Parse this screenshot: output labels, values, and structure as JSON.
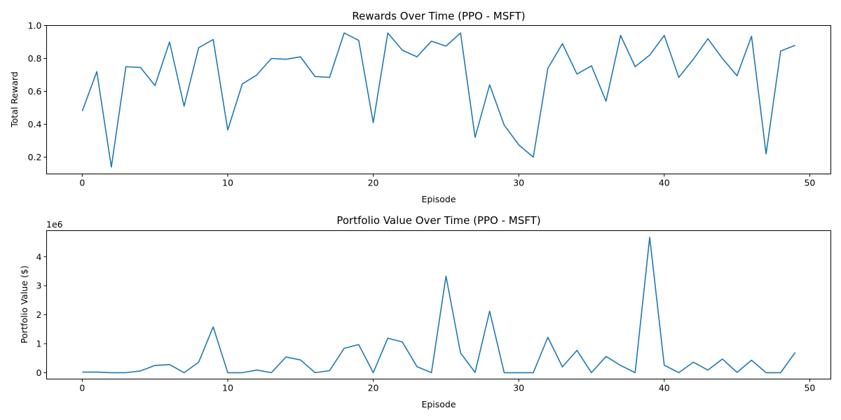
{
  "chart_data": [
    {
      "type": "line",
      "title": "Rewards Over Time (PPO - MSFT)",
      "xlabel": "Episode",
      "ylabel": "Total Reward",
      "xlim": [
        -2.45,
        51.45
      ],
      "ylim": [
        0.098,
        1.0
      ],
      "xticks": [
        0,
        10,
        20,
        30,
        40,
        50
      ],
      "xtick_labels": [
        "0",
        "10",
        "20",
        "30",
        "40",
        "50"
      ],
      "yticks": [
        0.2,
        0.4,
        0.6,
        0.8,
        1.0
      ],
      "ytick_labels": [
        "0.2",
        "0.4",
        "0.6",
        "0.8",
        "1.0"
      ],
      "grid": false,
      "series": [
        {
          "color": "#1f77b4",
          "x": [
            0,
            1,
            2,
            3,
            4,
            5,
            6,
            7,
            8,
            9,
            10,
            11,
            12,
            13,
            14,
            15,
            16,
            17,
            18,
            19,
            20,
            21,
            22,
            23,
            24,
            25,
            26,
            27,
            28,
            29,
            30,
            31,
            32,
            33,
            34,
            35,
            36,
            37,
            38,
            39,
            40,
            41,
            42,
            43,
            44,
            45,
            46,
            47,
            48,
            49
          ],
          "values": [
            0.48,
            0.72,
            0.14,
            0.75,
            0.745,
            0.635,
            0.9,
            0.51,
            0.865,
            0.915,
            0.365,
            0.645,
            0.7,
            0.8,
            0.795,
            0.81,
            0.69,
            0.685,
            0.955,
            0.91,
            0.41,
            0.955,
            0.85,
            0.81,
            0.905,
            0.875,
            0.955,
            0.32,
            0.64,
            0.395,
            0.275,
            0.2,
            0.74,
            0.89,
            0.705,
            0.755,
            0.54,
            0.94,
            0.75,
            0.82,
            0.94,
            0.685,
            0.795,
            0.92,
            0.8,
            0.695,
            0.935,
            0.22,
            0.845,
            0.88
          ]
        }
      ]
    },
    {
      "type": "line",
      "title": "Portfolio Value Over Time (PPO - MSFT)",
      "xlabel": "Episode",
      "ylabel": "Portfolio Value ($)",
      "y_offset_label": "1e6",
      "xlim": [
        -2.45,
        51.45
      ],
      "ylim": [
        -0.22,
        4.9
      ],
      "xticks": [
        0,
        10,
        20,
        30,
        40,
        50
      ],
      "xtick_labels": [
        "0",
        "10",
        "20",
        "30",
        "40",
        "50"
      ],
      "yticks": [
        0,
        1,
        2,
        3,
        4
      ],
      "ytick_labels": [
        "0",
        "1",
        "2",
        "3",
        "4"
      ],
      "grid": false,
      "series": [
        {
          "color": "#1f77b4",
          "x": [
            0,
            1,
            2,
            3,
            4,
            5,
            6,
            7,
            8,
            9,
            10,
            11,
            12,
            13,
            14,
            15,
            16,
            17,
            18,
            19,
            20,
            21,
            22,
            23,
            24,
            25,
            26,
            27,
            28,
            29,
            30,
            31,
            32,
            33,
            34,
            35,
            36,
            37,
            38,
            39,
            40,
            41,
            42,
            43,
            44,
            45,
            46,
            47,
            48,
            49
          ],
          "values": [
            0.02,
            0.02,
            0.0,
            0.0,
            0.06,
            0.25,
            0.28,
            0.0,
            0.36,
            1.58,
            0.0,
            0.0,
            0.09,
            0.0,
            0.54,
            0.44,
            0.0,
            0.07,
            0.84,
            0.97,
            0.0,
            1.19,
            1.06,
            0.21,
            0.0,
            3.33,
            0.68,
            0.01,
            2.12,
            0.0,
            0.0,
            0.0,
            1.22,
            0.2,
            0.77,
            0.0,
            0.56,
            0.25,
            0.0,
            4.67,
            0.26,
            0.0,
            0.36,
            0.09,
            0.47,
            0.01,
            0.43,
            0.0,
            0.0,
            0.7
          ]
        }
      ]
    }
  ]
}
